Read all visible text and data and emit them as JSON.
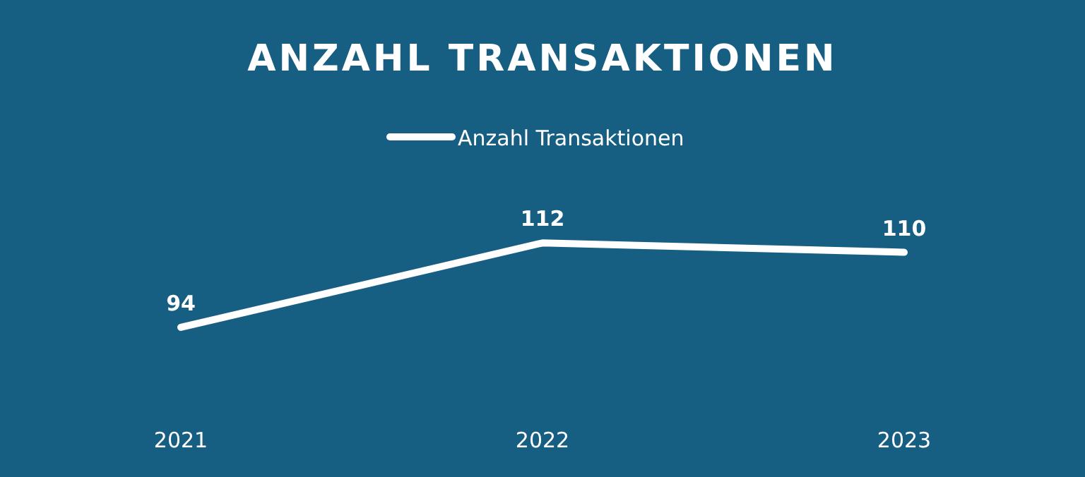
{
  "chart_data": {
    "type": "line",
    "title": "ANZAHL TRANSAKTIONEN",
    "categories": [
      "2021",
      "2022",
      "2023"
    ],
    "series": [
      {
        "name": "Anzahl Transaktionen",
        "color": "#ffffff",
        "values": [
          94,
          112,
          110
        ]
      }
    ],
    "data_labels": true,
    "legend": "top",
    "grid": false,
    "line_style": "solid"
  }
}
